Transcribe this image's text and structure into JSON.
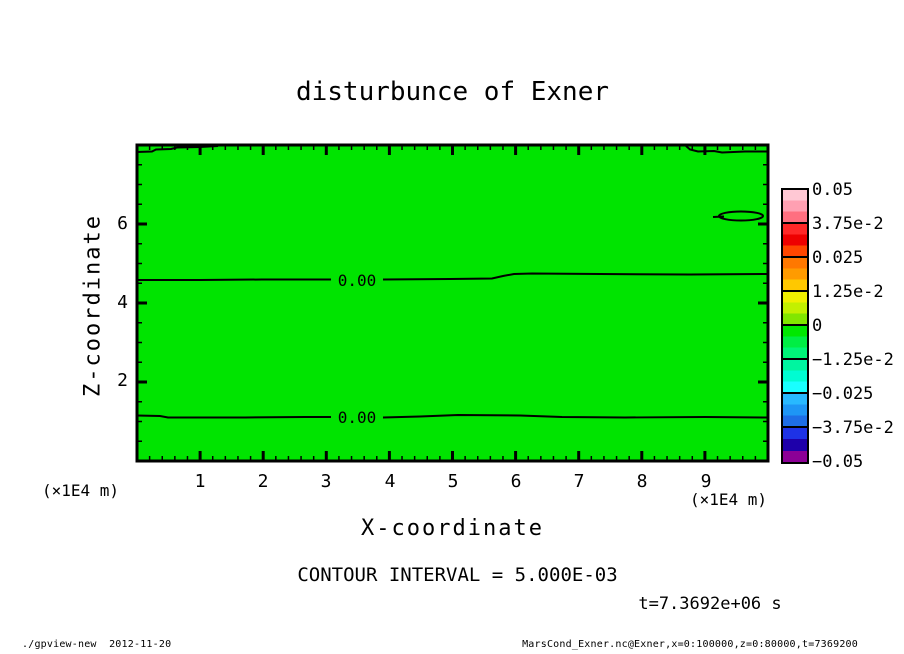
{
  "header": {
    "title": "disturbunce of Exner"
  },
  "axes": {
    "x": {
      "label": "X-coordinate",
      "unit_left": "(×1E4 m)",
      "unit_right": "(×1E4 m)",
      "tick_labels": [
        "1",
        "2",
        "3",
        "4",
        "5",
        "6",
        "7",
        "8",
        "9"
      ]
    },
    "z": {
      "label": "Z-coordinate",
      "tick_labels": [
        "6",
        "4",
        "2"
      ]
    }
  },
  "contour_labels": {
    "upper": "0.00",
    "lower": "0.00"
  },
  "colorbar": {
    "tick_labels": [
      "0.05",
      "3.75e-2",
      "0.025",
      "1.25e-2",
      "0",
      "−1.25e-2",
      "−0.025",
      "−3.75e-2",
      "−0.05"
    ]
  },
  "annotations": {
    "contour_interval": "CONTOUR INTERVAL = 5.000E-03",
    "time": "t=7.3692e+06 s"
  },
  "footer": {
    "left": "./gpview-new  2012-11-20",
    "right": "MarsCond_Exner.nc@Exner,x=0:100000,z=0:80000,t=7369200"
  },
  "chart_data": {
    "type": "heatmap",
    "subtype": "filled-contour-plot",
    "title": "disturbunce of Exner",
    "xlabel": "X-coordinate",
    "ylabel": "Z-coordinate",
    "axis_unit": "×1E4 m",
    "x_range_m": [
      0,
      100000
    ],
    "z_range_m": [
      0,
      80000
    ],
    "xlim": [
      0,
      10
    ],
    "zlim": [
      0,
      8
    ],
    "x_ticks": [
      1,
      2,
      3,
      4,
      5,
      6,
      7,
      8,
      9
    ],
    "z_ticks": [
      2,
      4,
      6
    ],
    "x_minor_step": 0.2,
    "z_minor_step": 0.5,
    "contour_interval": 0.005,
    "time_seconds": 7369200,
    "value_range": [
      -0.05,
      0.05
    ],
    "fill_color": "#00e400",
    "field_summary": "Exner disturbance is ~0 over the whole domain (single green band). Zero contours: horizontal line at z≈4.6 with slight step up near x≈5.9, horizontal line at z≈1.1, short segments hugging the top edge at x≈0–1.3 and x≈8.7–10, and a small closed 0.00 contour near x≈9.2–9.9, z≈6.2.",
    "contours": [
      {
        "level": 0.0,
        "shape": "horizontal line across full width at z ≈ 4.6 (×1E4 m)"
      },
      {
        "level": 0.0,
        "shape": "horizontal line across full width at z ≈ 1.1 (×1E4 m)"
      },
      {
        "level": 0.0,
        "shape": "segment along top edge, x ≈ 0 – 1.3"
      },
      {
        "level": 0.0,
        "shape": "segment along top edge, x ≈ 8.7 – 10"
      },
      {
        "level": 0.0,
        "shape": "small closed contour, x ≈ 9.2 – 9.9, z ≈ 6.2"
      }
    ],
    "colorbar": {
      "orientation": "vertical",
      "levels": [
        0.05,
        0.0375,
        0.025,
        0.0125,
        0,
        -0.0125,
        -0.025,
        -0.0375,
        -0.05
      ],
      "segment_colors_top_to_bottom": [
        [
          "#ffc8d4",
          "#ffa0b2",
          "#ff6f80"
        ],
        [
          "#ff2828",
          "#ee0000",
          "#ff4600"
        ],
        [
          "#ff7800",
          "#ff9b00",
          "#ffc800"
        ],
        [
          "#f0f000",
          "#c3f000",
          "#82e600"
        ],
        [
          "#00e800",
          "#00ee44",
          "#00f578"
        ],
        [
          "#00f5a0",
          "#00fcd2",
          "#19ffff"
        ],
        [
          "#28b9ff",
          "#1e96f5",
          "#1e6ee6"
        ],
        [
          "#1e32e6",
          "#1e00aa",
          "#8c0096"
        ]
      ]
    }
  }
}
